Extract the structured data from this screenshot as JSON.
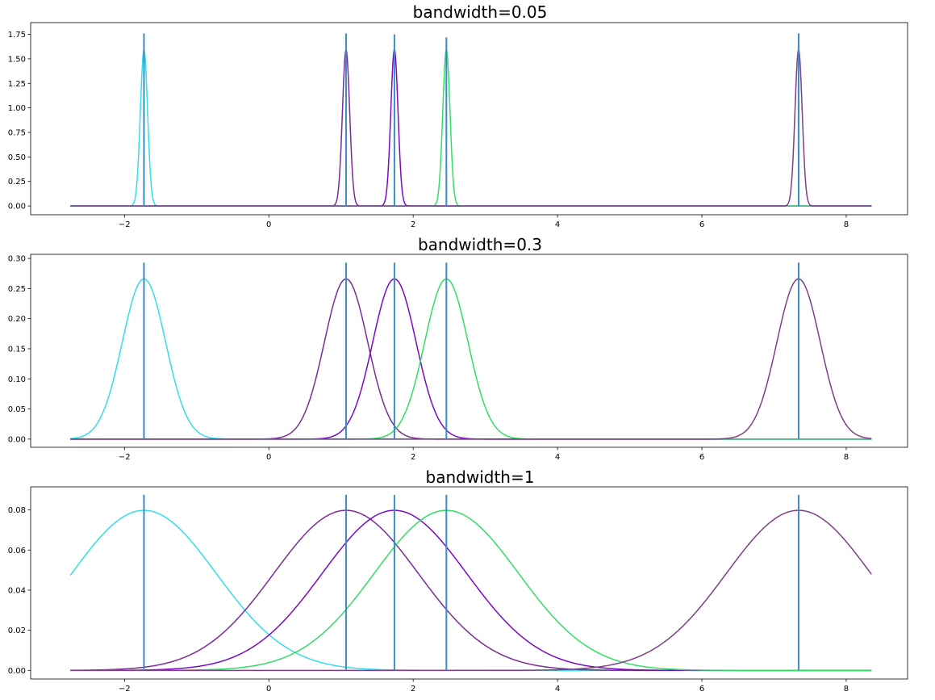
{
  "chart_data": [
    {
      "type": "line",
      "title": "bandwidth=0.05",
      "bandwidth": 0.05,
      "xlim": [
        -3.3,
        8.85
      ],
      "ylim": [
        -0.09,
        1.87
      ],
      "xticks": [
        -2,
        0,
        2,
        4,
        6,
        8
      ],
      "yticks": [
        0.0,
        0.25,
        0.5,
        0.75,
        1.0,
        1.25,
        1.5,
        1.75
      ],
      "ytick_labels": [
        "0.00",
        "0.25",
        "0.50",
        "0.75",
        "1.00",
        "1.25",
        "1.50",
        "1.75"
      ],
      "x_range": [
        -2.75,
        8.35
      ],
      "data_points": [
        -1.73,
        1.07,
        1.74,
        2.46,
        7.34
      ],
      "marker_heights": [
        1.76,
        1.76,
        1.75,
        1.72,
        1.76
      ],
      "series": [
        {
          "center": -1.73,
          "color": "#33ddee"
        },
        {
          "center": 1.07,
          "color": "#7a2c96"
        },
        {
          "center": 1.74,
          "color": "#7b0bc2"
        },
        {
          "center": 2.46,
          "color": "#33dd66"
        },
        {
          "center": 7.34,
          "color": "#7d3f85"
        }
      ]
    },
    {
      "type": "line",
      "title": "bandwidth=0.3",
      "bandwidth": 0.3,
      "xlim": [
        -3.3,
        8.85
      ],
      "ylim": [
        -0.0136,
        0.3068
      ],
      "xticks": [
        -2,
        0,
        2,
        4,
        6,
        8
      ],
      "yticks": [
        0.0,
        0.05,
        0.1,
        0.15,
        0.2,
        0.25,
        0.3
      ],
      "ytick_labels": [
        "0.00",
        "0.05",
        "0.10",
        "0.15",
        "0.20",
        "0.25",
        "0.30"
      ],
      "x_range": [
        -2.75,
        8.35
      ],
      "data_points": [
        -1.73,
        1.07,
        1.74,
        2.46,
        7.34
      ],
      "marker_heights": [
        0.293,
        0.293,
        0.293,
        0.293,
        0.293
      ],
      "series": [
        {
          "center": -1.73,
          "color": "#33ddee"
        },
        {
          "center": 1.07,
          "color": "#7a2c96"
        },
        {
          "center": 1.74,
          "color": "#7b0bc2"
        },
        {
          "center": 2.46,
          "color": "#33dd66"
        },
        {
          "center": 7.34,
          "color": "#7d3f85"
        }
      ]
    },
    {
      "type": "line",
      "title": "bandwidth=1",
      "bandwidth": 1,
      "xlim": [
        -3.3,
        8.85
      ],
      "ylim": [
        -0.0043,
        0.0915
      ],
      "xticks": [
        -2,
        0,
        2,
        4,
        6,
        8
      ],
      "yticks": [
        0.0,
        0.02,
        0.04,
        0.06,
        0.08
      ],
      "ytick_labels": [
        "0.00",
        "0.02",
        "0.04",
        "0.06",
        "0.08"
      ],
      "x_range": [
        -2.75,
        8.35
      ],
      "data_points": [
        -1.73,
        1.07,
        1.74,
        2.46,
        7.34
      ],
      "marker_heights": [
        0.0875,
        0.0875,
        0.0875,
        0.0875,
        0.0875
      ],
      "series": [
        {
          "center": -1.73,
          "color": "#33ddee"
        },
        {
          "center": 1.07,
          "color": "#7a2c96"
        },
        {
          "center": 1.74,
          "color": "#7b0bc2"
        },
        {
          "center": 2.46,
          "color": "#33dd66"
        },
        {
          "center": 7.34,
          "color": "#7d3f85"
        }
      ]
    }
  ],
  "colors": {
    "marker": "#3b8bc8",
    "axes": "#000000",
    "background": "#ffffff"
  }
}
